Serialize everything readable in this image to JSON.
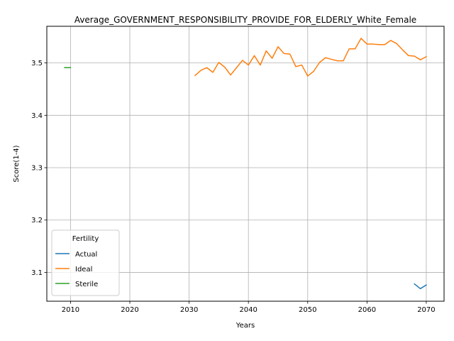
{
  "chart_data": {
    "type": "line",
    "title": "Average_GOVERNMENT_RESPONSIBILITY_PROVIDE_FOR_ELDERLY_White_Female",
    "xlabel": "Years",
    "ylabel": "Score(1-4)",
    "xlim": [
      2006,
      2073
    ],
    "ylim": [
      3.045,
      3.57
    ],
    "xticks": [
      "2010",
      "2020",
      "2030",
      "2040",
      "2050",
      "2060",
      "2070"
    ],
    "yticks": [
      "3.1",
      "3.2",
      "3.3",
      "3.4",
      "3.5"
    ],
    "grid": true,
    "legend": {
      "title": "Fertility",
      "position": "lower-left"
    },
    "series": [
      {
        "name": "Actual",
        "color": "#1f77b4",
        "x": [
          2068,
          2069,
          2070
        ],
        "y": [
          3.078,
          3.069,
          3.076
        ]
      },
      {
        "name": "Ideal",
        "color": "#ff7f0e",
        "x": [
          2031,
          2032,
          2033,
          2034,
          2035,
          2036,
          2037,
          2038,
          2039,
          2040,
          2041,
          2042,
          2043,
          2044,
          2045,
          2046,
          2047,
          2048,
          2049,
          2050,
          2051,
          2052,
          2053,
          2054,
          2055,
          2056,
          2057,
          2058,
          2059,
          2060,
          2061,
          2062,
          2063,
          2064,
          2065,
          2066,
          2067,
          2068,
          2069,
          2070
        ],
        "y": [
          3.476,
          3.486,
          3.491,
          3.482,
          3.501,
          3.492,
          3.477,
          3.491,
          3.505,
          3.496,
          3.514,
          3.496,
          3.523,
          3.509,
          3.531,
          3.518,
          3.517,
          3.493,
          3.496,
          3.475,
          3.484,
          3.501,
          3.51,
          3.507,
          3.504,
          3.504,
          3.527,
          3.527,
          3.547,
          3.536,
          3.536,
          3.535,
          3.535,
          3.543,
          3.537,
          3.525,
          3.514,
          3.513,
          3.506,
          3.512
        ]
      },
      {
        "name": "Sterile",
        "color": "#2ca02c",
        "x": [
          2009,
          2010
        ],
        "y": [
          3.491,
          3.491
        ]
      }
    ]
  }
}
